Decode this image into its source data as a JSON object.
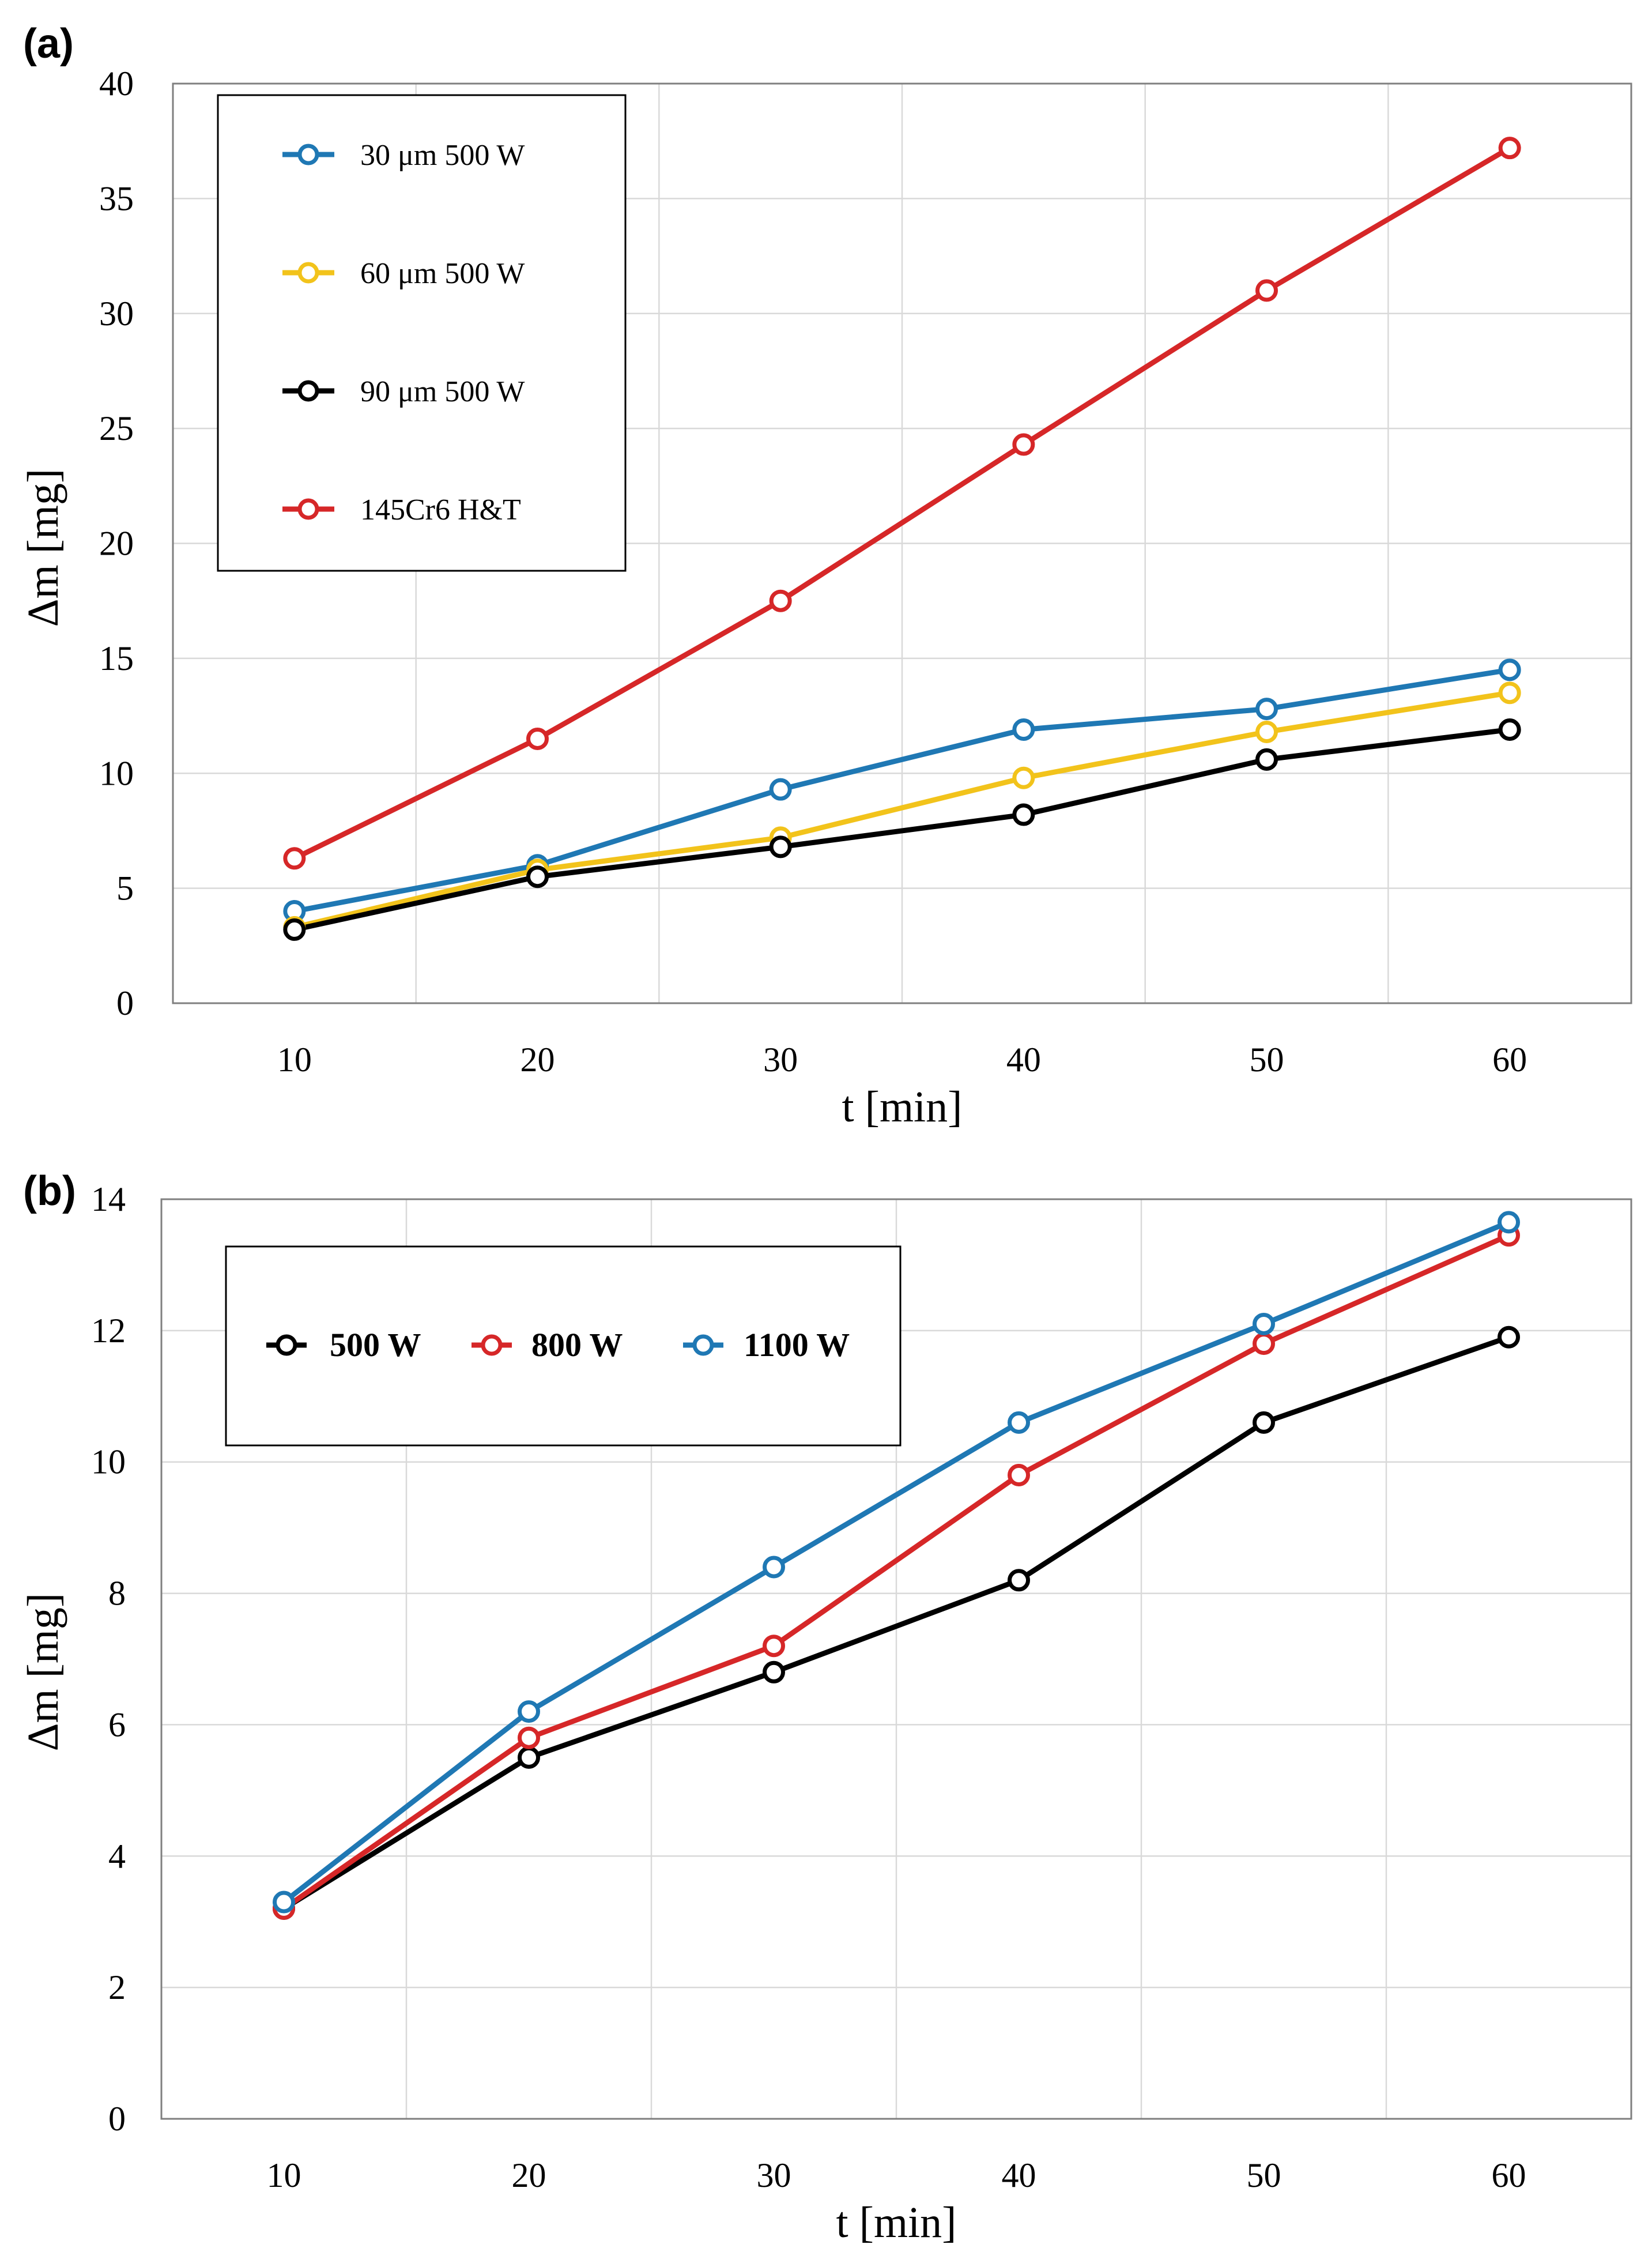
{
  "colors": {
    "blue": "#1f78b4",
    "yellow": "#f2c31b",
    "black": "#000000",
    "red": "#d62728"
  },
  "chart_data": [
    {
      "id": "a",
      "panel_label": "(a)",
      "type": "line",
      "title": "",
      "xlabel": "t [min]",
      "ylabel": "Δm [mg]",
      "x": [
        10,
        20,
        30,
        40,
        50,
        60
      ],
      "xlim": [
        5,
        65
      ],
      "ylim": [
        0,
        40
      ],
      "yticks": [
        0,
        5,
        10,
        15,
        20,
        25,
        30,
        35,
        40
      ],
      "xticks": [
        10,
        20,
        30,
        40,
        50,
        60
      ],
      "grid": true,
      "legend_position": "top-left",
      "series": [
        {
          "name": "30 μm  500 W",
          "color": "#1f78b4",
          "values": [
            4.0,
            6.0,
            9.3,
            11.9,
            12.8,
            14.5
          ]
        },
        {
          "name": "60 μm  500 W",
          "color": "#f2c31b",
          "values": [
            3.3,
            5.8,
            7.2,
            9.8,
            11.8,
            13.5
          ]
        },
        {
          "name": "90 μm  500 W",
          "color": "#000000",
          "values": [
            3.2,
            5.5,
            6.8,
            8.2,
            10.6,
            11.9
          ]
        },
        {
          "name": "145Cr6 H&T",
          "color": "#d62728",
          "values": [
            6.3,
            11.5,
            17.5,
            24.3,
            31.0,
            37.2
          ]
        }
      ]
    },
    {
      "id": "b",
      "panel_label": "(b)",
      "type": "line",
      "title": "",
      "xlabel": "t [min]",
      "ylabel": "Δm [mg]",
      "x": [
        10,
        20,
        30,
        40,
        50,
        60
      ],
      "xlim": [
        5,
        65
      ],
      "ylim": [
        0,
        14
      ],
      "yticks": [
        0,
        2,
        4,
        6,
        8,
        10,
        12,
        14
      ],
      "xticks": [
        10,
        20,
        30,
        40,
        50,
        60
      ],
      "grid": true,
      "legend_position": "top-left",
      "series": [
        {
          "name": "500 W",
          "color": "#000000",
          "values": [
            3.2,
            5.5,
            6.8,
            8.2,
            10.6,
            11.9
          ]
        },
        {
          "name": "800 W",
          "color": "#d62728",
          "values": [
            3.2,
            5.8,
            7.2,
            9.8,
            11.8,
            13.45
          ]
        },
        {
          "name": "1100 W",
          "color": "#1f78b4",
          "values": [
            3.3,
            6.2,
            8.4,
            10.6,
            12.1,
            13.65
          ]
        }
      ]
    }
  ]
}
